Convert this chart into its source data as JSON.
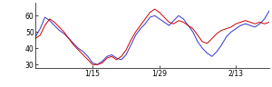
{
  "blue_y": [
    47,
    52,
    59,
    57,
    54,
    51,
    49,
    46,
    43,
    40,
    38,
    35,
    31,
    30,
    32,
    35,
    36,
    34,
    33,
    36,
    42,
    48,
    52,
    55,
    59,
    60,
    58,
    56,
    54,
    57,
    60,
    58,
    54,
    50,
    44,
    40,
    37,
    35,
    38,
    42,
    47,
    50,
    52,
    54,
    55,
    54,
    53,
    55,
    58,
    63
  ],
  "red_y": [
    46,
    48,
    54,
    58,
    56,
    53,
    50,
    46,
    42,
    39,
    36,
    33,
    30,
    30,
    31,
    34,
    35,
    33,
    35,
    39,
    45,
    50,
    54,
    58,
    62,
    64,
    62,
    59,
    56,
    55,
    57,
    56,
    54,
    52,
    48,
    44,
    43,
    46,
    49,
    51,
    52,
    53,
    55,
    56,
    57,
    56,
    55,
    56,
    55,
    56
  ],
  "ylim": [
    28,
    68
  ],
  "yticks": [
    30,
    40,
    50,
    60
  ],
  "xtick_labels": [
    "1/15",
    "1/29",
    "2/13"
  ],
  "xtick_positions": [
    12,
    26,
    42
  ],
  "blue_color": "#3333cc",
  "red_color": "#cc0000",
  "bg_color": "#ffffff",
  "linewidth": 0.7
}
